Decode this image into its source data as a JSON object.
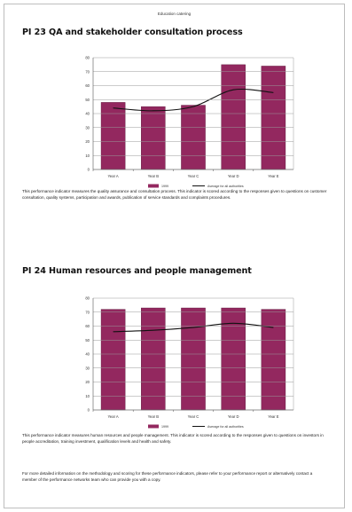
{
  "running_head": "Education catering",
  "sections": [
    {
      "title": "PI 23  QA and stakeholder consultation process",
      "paragraph": "This performance indicator measures the quality assurance and consultation process.  This indicator is scored according to the responses given to questions on customer consultation, quality systems, participation and awards, publication of service standards and complaints procedures."
    },
    {
      "title": "PI 24  Human resources and people management",
      "paragraph": "This performance indicator measures human resources and people management.  This indicator is scored according to the responses given to questions on investors in people accreditation, training investment, qualification levels and health and safety."
    }
  ],
  "footer_paragraph": "For more detailed information on the methodology and scoring for these performance indicators, please refer to your performance report or alternatively contact a member of the performance networks team who can provide you with a copy.",
  "colors": {
    "bar": "#93285f",
    "line": "#111111"
  },
  "chart_data": [
    {
      "type": "bar",
      "categories": [
        "Year A",
        "Year B",
        "Year C",
        "Year D",
        "Year E"
      ],
      "ylim": [
        0,
        80
      ],
      "yticks": [
        "0",
        "10",
        "20",
        "30",
        "40",
        "50",
        "60",
        "70",
        "80"
      ],
      "series": [
        {
          "name": "1999",
          "kind": "bar",
          "values": [
            48,
            45,
            46,
            75,
            74
          ]
        },
        {
          "name": "Average for all authorities",
          "kind": "line",
          "values": [
            44,
            42,
            45,
            57,
            55
          ]
        }
      ],
      "grid": true,
      "legend": "bottom"
    },
    {
      "type": "bar",
      "categories": [
        "Year A",
        "Year B",
        "Year C",
        "Year D",
        "Year E"
      ],
      "ylim": [
        0,
        80
      ],
      "yticks": [
        "0",
        "10",
        "20",
        "30",
        "40",
        "50",
        "60",
        "70",
        "80"
      ],
      "series": [
        {
          "name": "1999",
          "kind": "bar",
          "values": [
            72,
            73,
            73,
            73,
            72
          ]
        },
        {
          "name": "Average for all authorities",
          "kind": "line",
          "values": [
            56,
            57,
            59,
            62,
            59
          ]
        }
      ],
      "grid": true,
      "legend": "bottom"
    }
  ]
}
